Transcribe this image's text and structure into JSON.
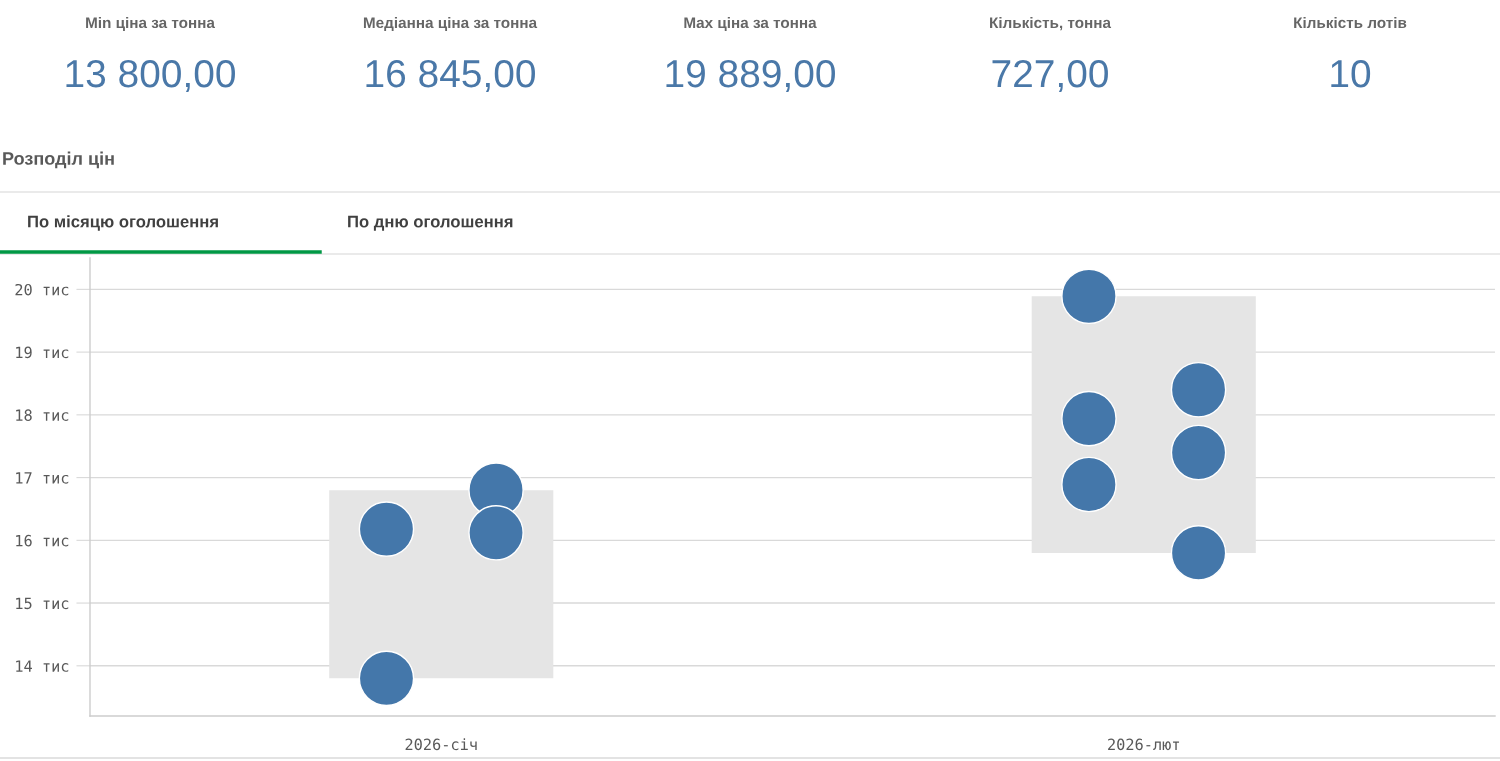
{
  "chart_data": [
    {
      "type": "other",
      "title": "Min ціна за тонна",
      "annotations": [
        "13 800,00"
      ]
    },
    {
      "type": "other",
      "title": "Медіанна ціна за тонна",
      "annotations": [
        "16 845,00"
      ]
    },
    {
      "type": "other",
      "title": "Max ціна за тонна",
      "annotations": [
        "19 889,00"
      ]
    },
    {
      "type": "other",
      "title": "Кількість, тонна",
      "annotations": [
        "727,00"
      ]
    },
    {
      "type": "other",
      "title": "Кількість лотів",
      "annotations": [
        "10"
      ]
    },
    {
      "type": "scatter",
      "title": "Розподіл цін",
      "annotations": [
        "По місяцю оголошення",
        "По дню оголошення"
      ],
      "categories": [
        "2026-січ",
        "2026-лют"
      ],
      "series": [
        {
          "type": "bar",
          "color": "#e5e5e5",
          "base": [
            13.8,
            15.8
          ],
          "values": [
            3.0,
            4.09
          ]
        },
        {
          "type": "scatter",
          "color": "#4477aa",
          "x": [
            "2026-січ",
            "2026-січ",
            "2026-січ",
            "2026-січ",
            "2026-лют",
            "2026-лют",
            "2026-лют",
            "2026-лют",
            "2026-лют",
            "2026-лют"
          ],
          "values": [
            16.18,
            16.8,
            13.8,
            16.12,
            17.94,
            18.4,
            16.89,
            17.4,
            19.89,
            15.8
          ]
        }
      ],
      "ylim": [
        13.2,
        20.5
      ],
      "yticks": [
        {
          "value": 14,
          "label": "14 тис"
        },
        {
          "value": 15,
          "label": "15 тис"
        },
        {
          "value": 16,
          "label": "16 тис"
        },
        {
          "value": 17,
          "label": "17 тис"
        },
        {
          "value": 18,
          "label": "18 тис"
        },
        {
          "value": 19,
          "label": "19 тис"
        },
        {
          "value": 20,
          "label": "20 тис"
        }
      ],
      "grid": "y",
      "marker": "circle"
    }
  ]
}
